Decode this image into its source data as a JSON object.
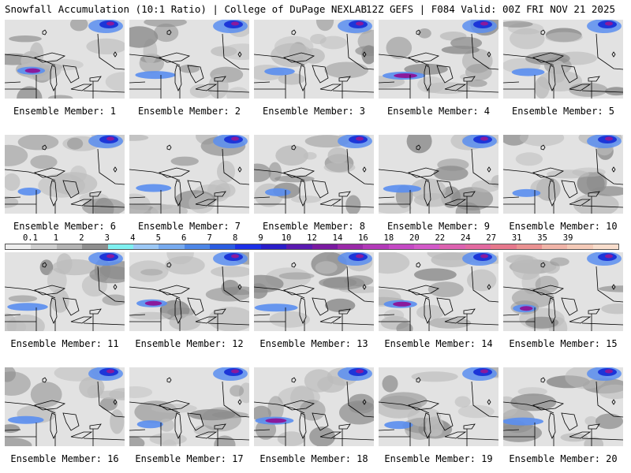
{
  "header": {
    "left": "Snowfall Accumulation (10:1 Ratio) | College of DuPage NEXLAB",
    "right": "12Z GEFS | F084 Valid: 00Z FRI NOV 21 2025"
  },
  "panels": [
    {
      "label": "Ensemble Member: 1",
      "member": 1
    },
    {
      "label": "Ensemble Member: 2",
      "member": 2
    },
    {
      "label": "Ensemble Member: 3",
      "member": 3
    },
    {
      "label": "Ensemble Member: 4",
      "member": 4
    },
    {
      "label": "Ensemble Member: 5",
      "member": 5
    },
    {
      "label": "Ensemble Member: 6",
      "member": 6
    },
    {
      "label": "Ensemble Member: 7",
      "member": 7
    },
    {
      "label": "Ensemble Member: 8",
      "member": 8
    },
    {
      "label": "Ensemble Member: 9",
      "member": 9
    },
    {
      "label": "Ensemble Member: 10",
      "member": 10
    },
    {
      "label": "Ensemble Member: 11",
      "member": 11
    },
    {
      "label": "Ensemble Member: 12",
      "member": 12
    },
    {
      "label": "Ensemble Member: 13",
      "member": 13
    },
    {
      "label": "Ensemble Member: 14",
      "member": 14
    },
    {
      "label": "Ensemble Member: 15",
      "member": 15
    },
    {
      "label": "Ensemble Member: 16",
      "member": 16
    },
    {
      "label": "Ensemble Member: 17",
      "member": 17
    },
    {
      "label": "Ensemble Member: 18",
      "member": 18
    },
    {
      "label": "Ensemble Member: 19",
      "member": 19
    },
    {
      "label": "Ensemble Member: 20",
      "member": 20
    }
  ],
  "legend": {
    "ticks": [
      "0.1",
      "1",
      "2",
      "3",
      "4",
      "5",
      "6",
      "7",
      "8",
      "9",
      "10",
      "12",
      "14",
      "16",
      "18",
      "20",
      "22",
      "24",
      "27",
      "31",
      "35",
      "39"
    ],
    "colors": [
      "#eeeeee",
      "#cfcfcf",
      "#b3b3b3",
      "#8e8e8e",
      "#7ff0f0",
      "#9cc8f5",
      "#77aaee",
      "#4d86e6",
      "#2a5ce0",
      "#1c30e6",
      "#2a1ec8",
      "#5a1ab0",
      "#7a1aa0",
      "#9a2aa8",
      "#b23ab8",
      "#c44ac4",
      "#d25ac8",
      "#dc62b0",
      "#e26aa0",
      "#e6788c",
      "#ea9292",
      "#f0b4a8",
      "#f4cab8",
      "#f8ddcc"
    ]
  },
  "colors": {
    "background": "#ffffff",
    "map_base": "#e2e2e2",
    "snow_light": "#bcbcbc",
    "snow_mid": "#8c8c8c",
    "snow_blue": "#5a8ef0",
    "snow_dblue": "#1c36d8",
    "snow_purple": "#8a1a9c"
  }
}
